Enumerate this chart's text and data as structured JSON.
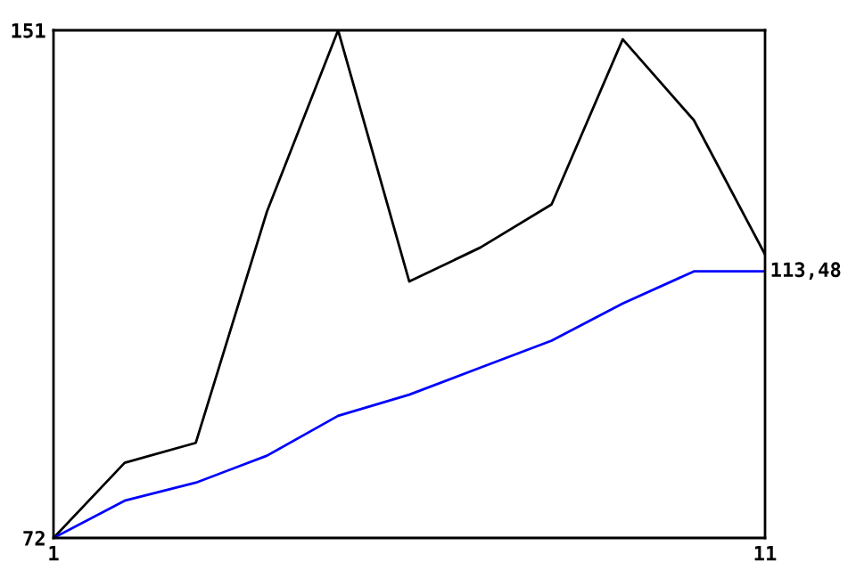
{
  "chart_data": {
    "type": "line",
    "x": [
      1,
      2,
      3,
      4,
      5,
      6,
      7,
      8,
      9,
      10,
      11
    ],
    "series": [
      {
        "color": "#000000",
        "values": [
          72,
          83.7,
          86.8,
          122.8,
          151,
          111.9,
          117.2,
          123.9,
          149.6,
          137,
          116.1
        ]
      },
      {
        "color": "#0000ff",
        "values": [
          72,
          77.8,
          80.6,
          84.8,
          91,
          94.3,
          98.5,
          102.7,
          108.5,
          113.48,
          113.48
        ]
      }
    ],
    "xlim": [
      1,
      11
    ],
    "xticks": [
      1,
      11
    ],
    "ylim": [
      72,
      151
    ],
    "yticks": [
      72,
      151
    ],
    "annotations": [
      {
        "text": "113,48",
        "x": 11,
        "y": 113.48
      }
    ],
    "grid": false,
    "marker": "none",
    "line_style": "solid"
  }
}
